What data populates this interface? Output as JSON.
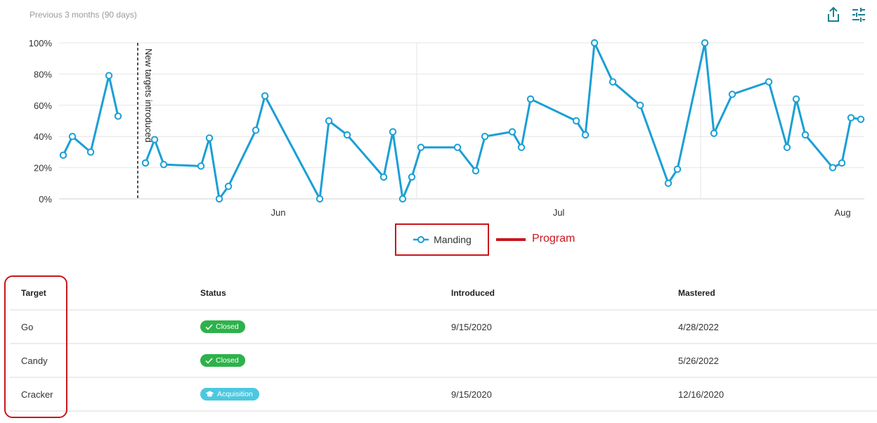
{
  "header": {
    "subtitle": "Previous 3 months (90 days)",
    "share_icon": "share-icon",
    "filter_icon": "sliders-icon"
  },
  "colors": {
    "series": "#1a9fd6",
    "annotation": "#c8161d",
    "closed_badge": "#2db24a",
    "acquisition_badge": "#4cc8e0",
    "icon": "#1b7f93"
  },
  "chart_data": {
    "type": "line",
    "title": "Previous 3 months (90 days)",
    "xlabel": "",
    "ylabel": "",
    "ylim": [
      0,
      100
    ],
    "y_ticks": [
      "0%",
      "20%",
      "40%",
      "60%",
      "80%",
      "100%"
    ],
    "x_ticks": [
      "Jun",
      "Jul",
      "Aug"
    ],
    "grid": true,
    "legend_position": "bottom",
    "annotations": [
      {
        "type": "vertical-dashed-line",
        "label": "New targets introduced",
        "position": "mid-May"
      }
    ],
    "series": [
      {
        "name": "Manding",
        "segments": [
          [
            28,
            40,
            30,
            79,
            53
          ],
          [
            23,
            38,
            22,
            21,
            39,
            0,
            8,
            44,
            66,
            0,
            50,
            41,
            14,
            43,
            0,
            14,
            33,
            33,
            18,
            40,
            43,
            33,
            64,
            50,
            41,
            100,
            75,
            60,
            10,
            19,
            100,
            42,
            67,
            75,
            33,
            64,
            41,
            20,
            23,
            52,
            51
          ]
        ]
      }
    ]
  },
  "legend": {
    "items": [
      {
        "label": "Manding"
      }
    ],
    "callout": "Program"
  },
  "table": {
    "headers": [
      "Target",
      "Status",
      "Introduced",
      "Mastered"
    ],
    "rows": [
      {
        "target": "Go",
        "status": "Closed",
        "status_type": "closed",
        "introduced": "9/15/2020",
        "mastered": "4/28/2022"
      },
      {
        "target": "Candy",
        "status": "Closed",
        "status_type": "closed",
        "introduced": "",
        "mastered": "5/26/2022"
      },
      {
        "target": "Cracker",
        "status": "Acquisition",
        "status_type": "acquisition",
        "introduced": "9/15/2020",
        "mastered": "12/16/2020"
      }
    ]
  }
}
